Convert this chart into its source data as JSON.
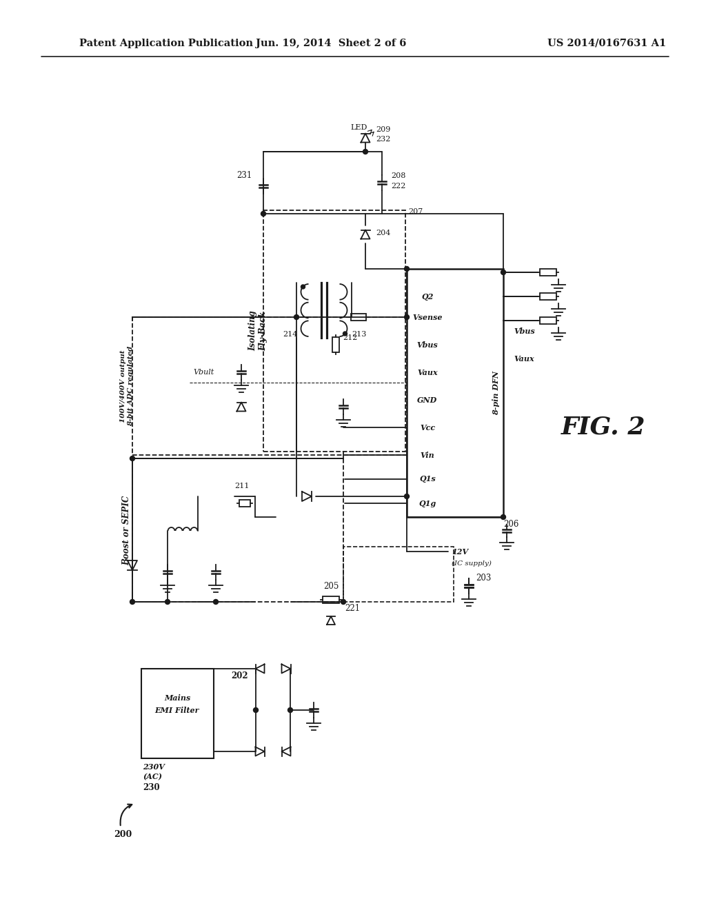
{
  "title": "Patent Application Publication",
  "date": "Jun. 19, 2014  Sheet 2 of 6",
  "patent_num": "US 2014/0167631 A1",
  "fig_label": "FIG. 2",
  "bg_color": "#ffffff",
  "line_color": "#1a1a1a"
}
